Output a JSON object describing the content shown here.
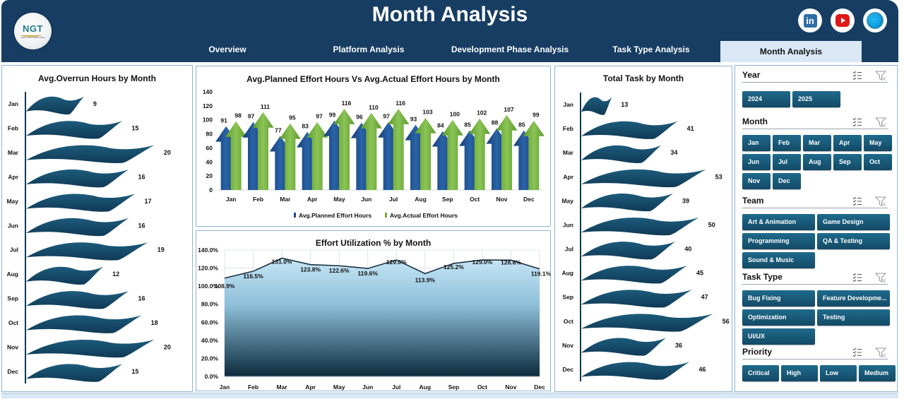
{
  "header": {
    "title": "Month Analysis",
    "logo_text": "NGT",
    "logo_subtext": "NEXT GEN TEMPLATES",
    "social": [
      {
        "name": "linkedin",
        "label": "in"
      },
      {
        "name": "youtube",
        "label": ""
      },
      {
        "name": "website",
        "label": "🌐"
      }
    ]
  },
  "tabs": [
    {
      "label": "Overview",
      "active": false
    },
    {
      "label": "Platform Analysis",
      "active": false
    },
    {
      "label": "Development Phase Analysis",
      "active": false
    },
    {
      "label": "Task Type Analysis",
      "active": false
    },
    {
      "label": "Month Analysis",
      "active": true
    }
  ],
  "colors": {
    "header_bg": "#173d63",
    "flag_dark": "#0f3a55",
    "flag_mid": "#1d5b7c",
    "planned": "#1b4d8c",
    "actual": "#6fae3a",
    "area_top": "#c7e6f6",
    "area_bottom": "#0c2a3c",
    "slicer_btn": "#1a5878",
    "active_tab": "#dae8f5"
  },
  "chart_data": [
    {
      "id": "overrun",
      "type": "bar",
      "title": "Avg.Overrun Hours by Month",
      "categories": [
        "Jan",
        "Feb",
        "Mar",
        "Apr",
        "May",
        "Jun",
        "Jul",
        "Aug",
        "Sep",
        "Oct",
        "Nov",
        "Dec"
      ],
      "values": [
        9,
        15,
        20,
        16,
        17,
        16,
        19,
        12,
        16,
        18,
        20,
        15
      ],
      "orientation": "horizontal",
      "xlim": [
        0,
        22
      ]
    },
    {
      "id": "effort",
      "type": "bar",
      "title": "Avg.Planned Effort Hours Vs Avg.Actual Effort Hours by Month",
      "categories": [
        "Jan",
        "Feb",
        "Mar",
        "Apr",
        "May",
        "Jun",
        "Jul",
        "Aug",
        "Sep",
        "Oct",
        "Nov",
        "Dec"
      ],
      "series": [
        {
          "name": "Avg.Planned Effort Hours",
          "values": [
            91,
            97,
            77,
            83,
            99,
            96,
            97,
            93,
            84,
            85,
            88,
            85
          ]
        },
        {
          "name": "Avg.Actual Effort Hours",
          "values": [
            98,
            111,
            95,
            97,
            116,
            110,
            116,
            103,
            100,
            102,
            107,
            99
          ]
        }
      ],
      "yticks": [
        "0",
        "20",
        "40",
        "60",
        "80",
        "100",
        "120",
        "140"
      ],
      "ylim": [
        0,
        140
      ],
      "legend": "bottom"
    },
    {
      "id": "utilization",
      "type": "area",
      "title": "Effort Utilization % by Month",
      "categories": [
        "Jan",
        "Feb",
        "Mar",
        "Apr",
        "May",
        "Jun",
        "Jul",
        "Aug",
        "Sep",
        "Oct",
        "Nov",
        "Dec"
      ],
      "values": [
        108.9,
        116.5,
        131.0,
        123.8,
        122.6,
        119.6,
        129.0,
        113.9,
        125.2,
        129.0,
        128.8,
        119.1
      ],
      "labels": [
        "108.9%",
        "116.5%",
        "131.0%",
        "123.8%",
        "122.6%",
        "119.6%",
        "129.0%",
        "113.9%",
        "125.2%",
        "129.0%",
        "128.8%",
        "119.1%"
      ],
      "yticks": [
        "0.0%",
        "20.0%",
        "40.0%",
        "60.0%",
        "80.0%",
        "100.0%",
        "120.0%",
        "140.0%"
      ],
      "ylim": [
        0,
        140
      ],
      "grid": true
    },
    {
      "id": "tasks",
      "type": "bar",
      "title": "Total Task by Month",
      "categories": [
        "Jan",
        "Feb",
        "Mar",
        "Apr",
        "May",
        "Jun",
        "Jul",
        "Aug",
        "Sep",
        "Oct",
        "Nov",
        "Dec"
      ],
      "values": [
        13,
        41,
        34,
        53,
        39,
        50,
        40,
        45,
        47,
        56,
        36,
        46
      ],
      "orientation": "horizontal",
      "xlim": [
        0,
        60
      ]
    }
  ],
  "slicers": [
    {
      "title": "Year",
      "items": [
        "2024",
        "2025"
      ]
    },
    {
      "title": "Month",
      "items": [
        "Jan",
        "Feb",
        "Mar",
        "Apr",
        "May",
        "Jun",
        "Jul",
        "Aug",
        "Sep",
        "Oct",
        "Nov",
        "Dec"
      ]
    },
    {
      "title": "Team",
      "items": [
        "Art & Animation",
        "Game Design",
        "Programming",
        "QA & Testing",
        "Sound & Music"
      ]
    },
    {
      "title": "Task Type",
      "items": [
        "Bug Fixing",
        "Feature Developme...",
        "Optimization",
        "Testing",
        "UI/UX"
      ]
    },
    {
      "title": "Priority",
      "items": [
        "Critical",
        "High",
        "Low",
        "Medium"
      ]
    }
  ]
}
